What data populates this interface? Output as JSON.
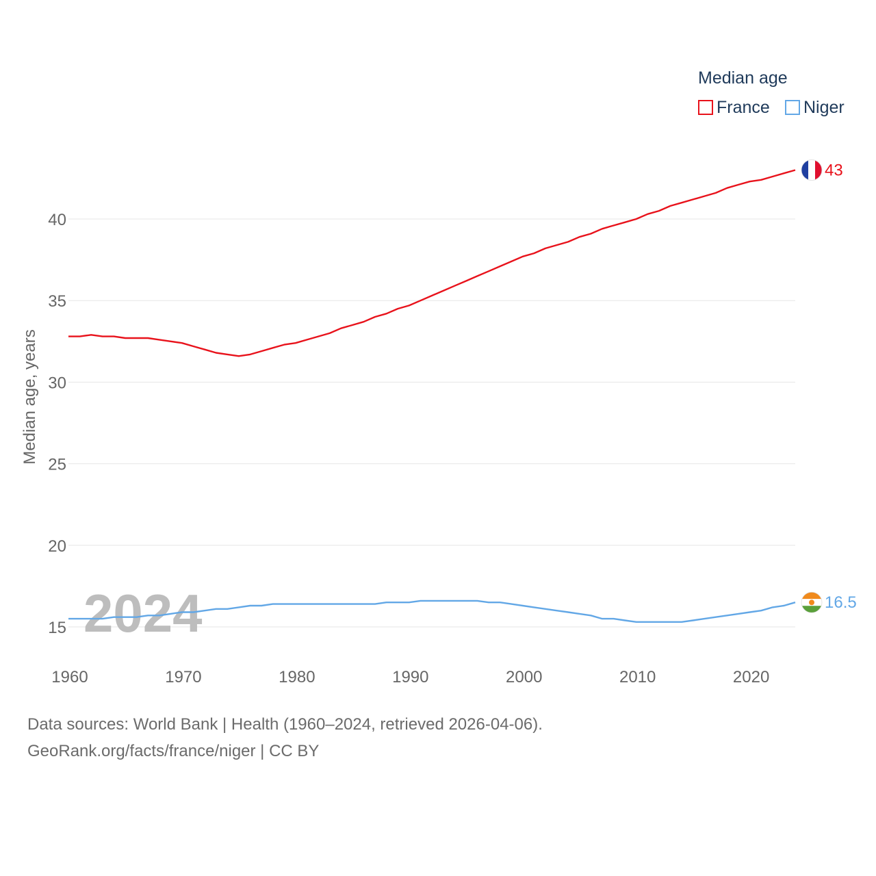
{
  "legend": {
    "title": "Median age",
    "items": [
      {
        "label": "France",
        "color": "#e8121b"
      },
      {
        "label": "Niger",
        "color": "#62a7e6"
      }
    ]
  },
  "footer": {
    "source_line": "Data sources: World Bank | Health (1960–2024, retrieved 2026-04-06).",
    "url_line": "GeoRank.org/facts/france/niger | CC BY"
  },
  "chart_data": {
    "type": "line",
    "title": "Median age",
    "xlabel": "",
    "ylabel": "Median age, years",
    "year_label": "2024",
    "xlim": [
      1960,
      2024
    ],
    "ylim": [
      13,
      44
    ],
    "x_ticks": [
      1960,
      1970,
      1980,
      1990,
      2000,
      2010,
      2020
    ],
    "y_ticks": [
      15,
      20,
      25,
      30,
      35,
      40
    ],
    "grid": true,
    "x": [
      1960,
      1961,
      1962,
      1963,
      1964,
      1965,
      1966,
      1967,
      1968,
      1969,
      1970,
      1971,
      1972,
      1973,
      1974,
      1975,
      1976,
      1977,
      1978,
      1979,
      1980,
      1981,
      1982,
      1983,
      1984,
      1985,
      1986,
      1987,
      1988,
      1989,
      1990,
      1991,
      1992,
      1993,
      1994,
      1995,
      1996,
      1997,
      1998,
      1999,
      2000,
      2001,
      2002,
      2003,
      2004,
      2005,
      2006,
      2007,
      2008,
      2009,
      2010,
      2011,
      2012,
      2013,
      2014,
      2015,
      2016,
      2017,
      2018,
      2019,
      2020,
      2021,
      2022,
      2023,
      2024
    ],
    "series": [
      {
        "name": "France",
        "color": "#e8121b",
        "end_label": "43",
        "flag": "france-flag-icon",
        "values": [
          32.8,
          32.8,
          32.9,
          32.8,
          32.8,
          32.7,
          32.7,
          32.7,
          32.6,
          32.5,
          32.4,
          32.2,
          32.0,
          31.8,
          31.7,
          31.6,
          31.7,
          31.9,
          32.1,
          32.3,
          32.4,
          32.6,
          32.8,
          33.0,
          33.3,
          33.5,
          33.7,
          34.0,
          34.2,
          34.5,
          34.7,
          35.0,
          35.3,
          35.6,
          35.9,
          36.2,
          36.5,
          36.8,
          37.1,
          37.4,
          37.7,
          37.9,
          38.2,
          38.4,
          38.6,
          38.9,
          39.1,
          39.4,
          39.6,
          39.8,
          40.0,
          40.3,
          40.5,
          40.8,
          41.0,
          41.2,
          41.4,
          41.6,
          41.9,
          42.1,
          42.3,
          42.4,
          42.6,
          42.8,
          43.0
        ]
      },
      {
        "name": "Niger",
        "color": "#62a7e6",
        "end_label": "16.5",
        "flag": "niger-flag-icon",
        "values": [
          15.5,
          15.5,
          15.5,
          15.5,
          15.6,
          15.6,
          15.6,
          15.7,
          15.7,
          15.8,
          15.9,
          15.9,
          16.0,
          16.1,
          16.1,
          16.2,
          16.3,
          16.3,
          16.4,
          16.4,
          16.4,
          16.4,
          16.4,
          16.4,
          16.4,
          16.4,
          16.4,
          16.4,
          16.5,
          16.5,
          16.5,
          16.6,
          16.6,
          16.6,
          16.6,
          16.6,
          16.6,
          16.5,
          16.5,
          16.4,
          16.3,
          16.2,
          16.1,
          16.0,
          15.9,
          15.8,
          15.7,
          15.5,
          15.5,
          15.4,
          15.3,
          15.3,
          15.3,
          15.3,
          15.3,
          15.4,
          15.5,
          15.6,
          15.7,
          15.8,
          15.9,
          16.0,
          16.2,
          16.3,
          16.5
        ]
      }
    ]
  }
}
